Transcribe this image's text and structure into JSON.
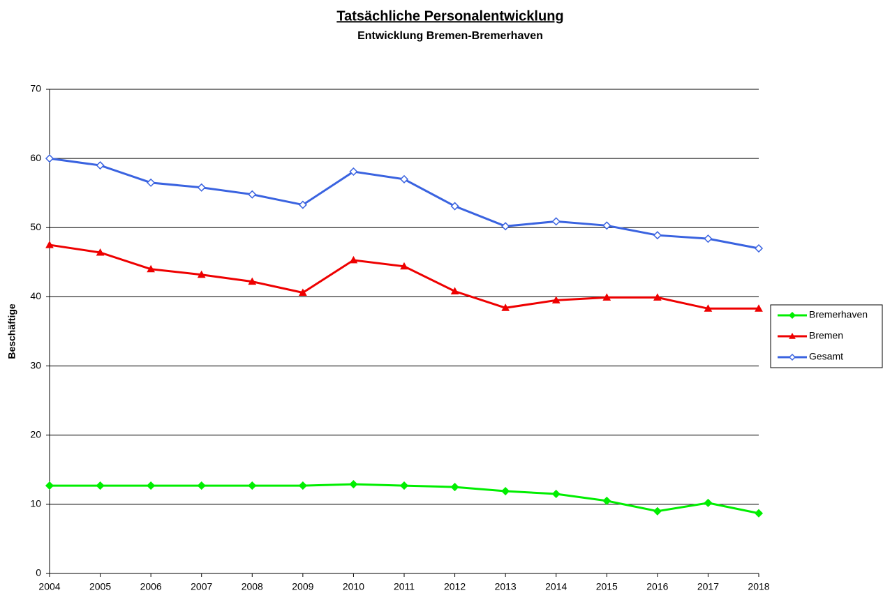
{
  "chart_data": {
    "type": "line",
    "title": "Tatsächliche Personalentwicklung",
    "subtitle": "Entwicklung Bremen-Bremerhaven",
    "y_label": "Beschäftige",
    "categories": [
      "2004",
      "2005",
      "2006",
      "2007",
      "2008",
      "2009",
      "2010",
      "2011",
      "2012",
      "2013",
      "2014",
      "2015",
      "2016",
      "2017",
      "2018"
    ],
    "series": [
      {
        "name": "Bremerhaven",
        "color": "#00ee00",
        "marker": "diamond",
        "marker_fill": "#00ee00",
        "values": [
          12.7,
          12.7,
          12.7,
          12.7,
          12.7,
          12.7,
          12.9,
          12.7,
          12.5,
          11.9,
          11.5,
          10.5,
          9.0,
          10.2,
          8.7
        ]
      },
      {
        "name": "Bremen",
        "color": "#ee0000",
        "marker": "triangle",
        "marker_fill": "#ee0000",
        "values": [
          47.5,
          46.4,
          44.0,
          43.2,
          42.2,
          40.6,
          45.3,
          44.4,
          40.8,
          38.4,
          39.5,
          39.9,
          39.9,
          38.3,
          38.3
        ]
      },
      {
        "name": "Gesamt",
        "color": "#3a63e0",
        "marker": "diamond",
        "marker_fill": "#ffffff",
        "values": [
          60.0,
          59.0,
          56.5,
          55.8,
          54.8,
          53.3,
          58.1,
          57.0,
          53.1,
          50.2,
          50.9,
          50.3,
          48.9,
          48.4,
          47.0
        ]
      }
    ],
    "ylim": [
      0,
      70
    ],
    "yticks": [
      0,
      10,
      20,
      30,
      40,
      50,
      60,
      70
    ],
    "grid": true,
    "legend": "right"
  }
}
